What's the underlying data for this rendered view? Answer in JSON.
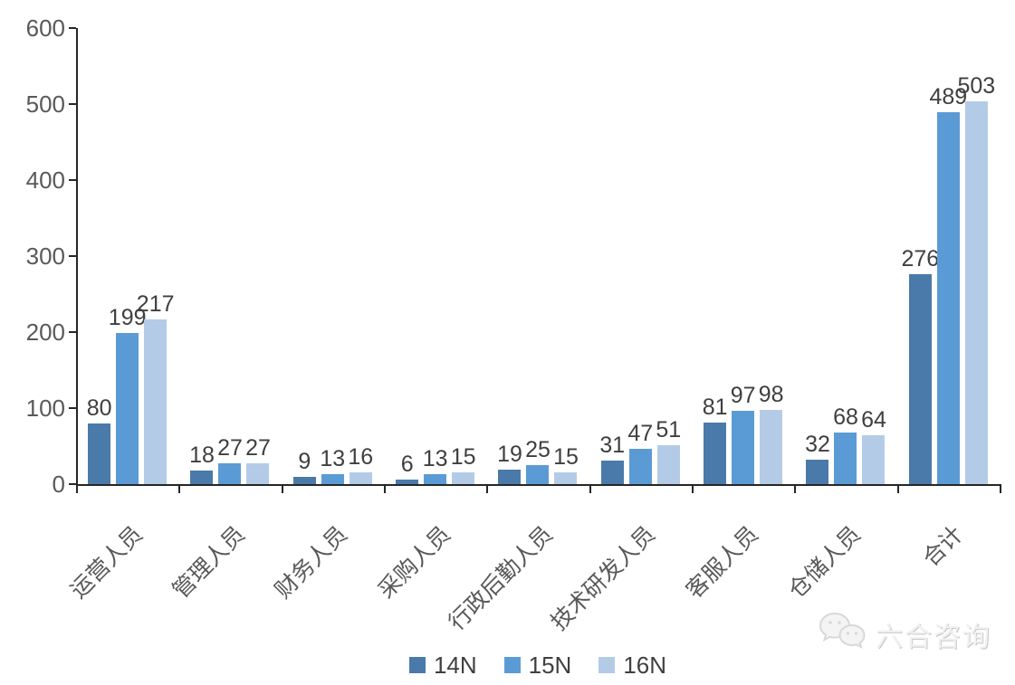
{
  "chart_data": {
    "type": "bar",
    "title": "",
    "xlabel": "",
    "ylabel": "",
    "categories": [
      "运营人员",
      "管理人员",
      "财务人员",
      "采购人员",
      "行政后勤人员",
      "技术研发人员",
      "客服人员",
      "仓储人员",
      "合计"
    ],
    "series": [
      {
        "name": "14N",
        "color": "#4a7aa9",
        "values": [
          80,
          18,
          9,
          6,
          19,
          31,
          81,
          32,
          276
        ]
      },
      {
        "name": "15N",
        "color": "#5b9bd5",
        "values": [
          199,
          27,
          13,
          13,
          25,
          47,
          97,
          68,
          489
        ]
      },
      {
        "name": "16N",
        "color": "#b4cbe7",
        "values": [
          217,
          27,
          16,
          15,
          15,
          51,
          98,
          64,
          503
        ]
      }
    ],
    "ylim": [
      0,
      600
    ],
    "yticks": [
      0,
      100,
      200,
      300,
      400,
      500,
      600
    ],
    "grid": false,
    "legend_position": "bottom",
    "value_labels": true,
    "colors": {
      "axis": "#262626",
      "tick_label": "#595959",
      "value_label": "#3f3f3f",
      "legend_label": "#404040"
    }
  },
  "watermark": {
    "text": "六合咨询",
    "icon": "wechat-icon"
  }
}
